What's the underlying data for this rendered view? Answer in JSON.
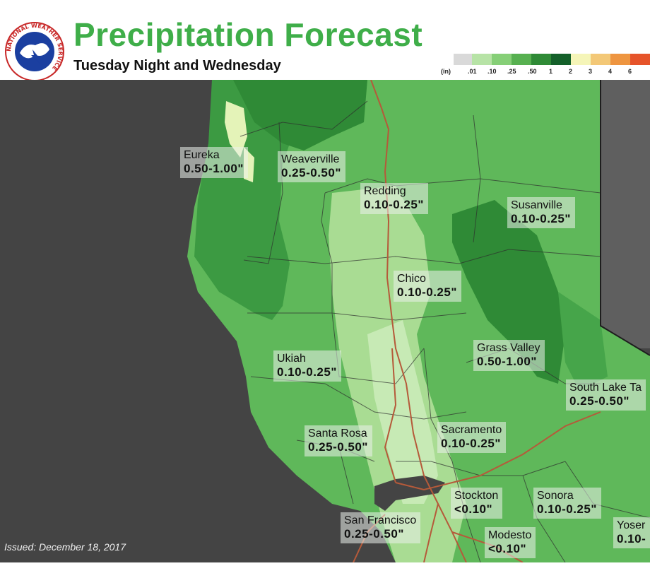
{
  "header": {
    "title": "Precipitation Forecast",
    "subtitle": "Tuesday Night and Wednesday"
  },
  "logo": {
    "text": "NATIONAL WEATHER SERVICE",
    "icon": "nws-logo-icon"
  },
  "legend": {
    "unit": "(in)",
    "ticks": [
      ".01",
      ".10",
      ".25",
      ".50",
      "1",
      "2",
      "3",
      "4",
      "6"
    ],
    "colors": [
      "#d9d9d9",
      "#b7e3a6",
      "#86cf77",
      "#57b050",
      "#2f8a36",
      "#14602a",
      "#f5f5b8",
      "#f3c877",
      "#ee9540",
      "#e6542a",
      "#d31e1e"
    ]
  },
  "map": {
    "ocean_color": "#444444",
    "state_color": "#5f5f5f",
    "labels": [
      {
        "city": "Eureka",
        "amount": "0.50-1.00\""
      },
      {
        "city": "Weaverville",
        "amount": "0.25-0.50\""
      },
      {
        "city": "Redding",
        "amount": "0.10-0.25\""
      },
      {
        "city": "Susanville",
        "amount": "0.10-0.25\""
      },
      {
        "city": "Chico",
        "amount": "0.10-0.25\""
      },
      {
        "city": "Grass Valley",
        "amount": "0.50-1.00\""
      },
      {
        "city": "Ukiah",
        "amount": "0.10-0.25\""
      },
      {
        "city": "South Lake Ta",
        "amount": "0.25-0.50\""
      },
      {
        "city": "Santa Rosa",
        "amount": "0.25-0.50\""
      },
      {
        "city": "Sacramento",
        "amount": "0.10-0.25\""
      },
      {
        "city": "Stockton",
        "amount": "<0.10\""
      },
      {
        "city": "Sonora",
        "amount": "0.10-0.25\""
      },
      {
        "city": "San Francisco",
        "amount": "0.25-0.50\""
      },
      {
        "city": "Modesto",
        "amount": "<0.10\""
      },
      {
        "city": "Yoser",
        "amount": "0.10-"
      }
    ]
  },
  "footer": {
    "issued": "Issued: December 18, 2017"
  }
}
